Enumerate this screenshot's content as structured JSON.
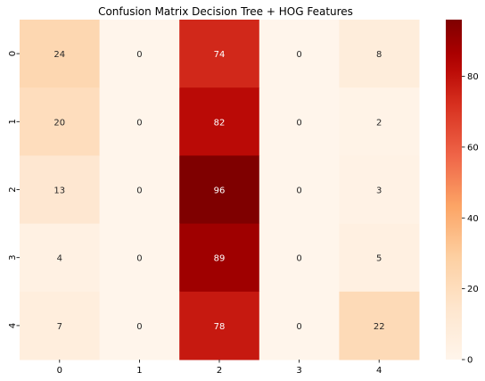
{
  "chart_data": {
    "type": "heatmap",
    "title": "Confusion Matrix Decision Tree + HOG Features",
    "x_categories": [
      "0",
      "1",
      "2",
      "3",
      "4"
    ],
    "y_categories": [
      "0",
      "1",
      "2",
      "3",
      "4"
    ],
    "values": [
      [
        24,
        0,
        74,
        0,
        8
      ],
      [
        20,
        0,
        82,
        0,
        2
      ],
      [
        13,
        0,
        96,
        0,
        3
      ],
      [
        4,
        0,
        89,
        0,
        5
      ],
      [
        7,
        0,
        78,
        0,
        22
      ]
    ],
    "vmin": 0,
    "vmax": 96,
    "colormap": "OrRd",
    "colorbar_ticks": [
      0,
      20,
      40,
      60,
      80
    ],
    "annotations": true
  }
}
